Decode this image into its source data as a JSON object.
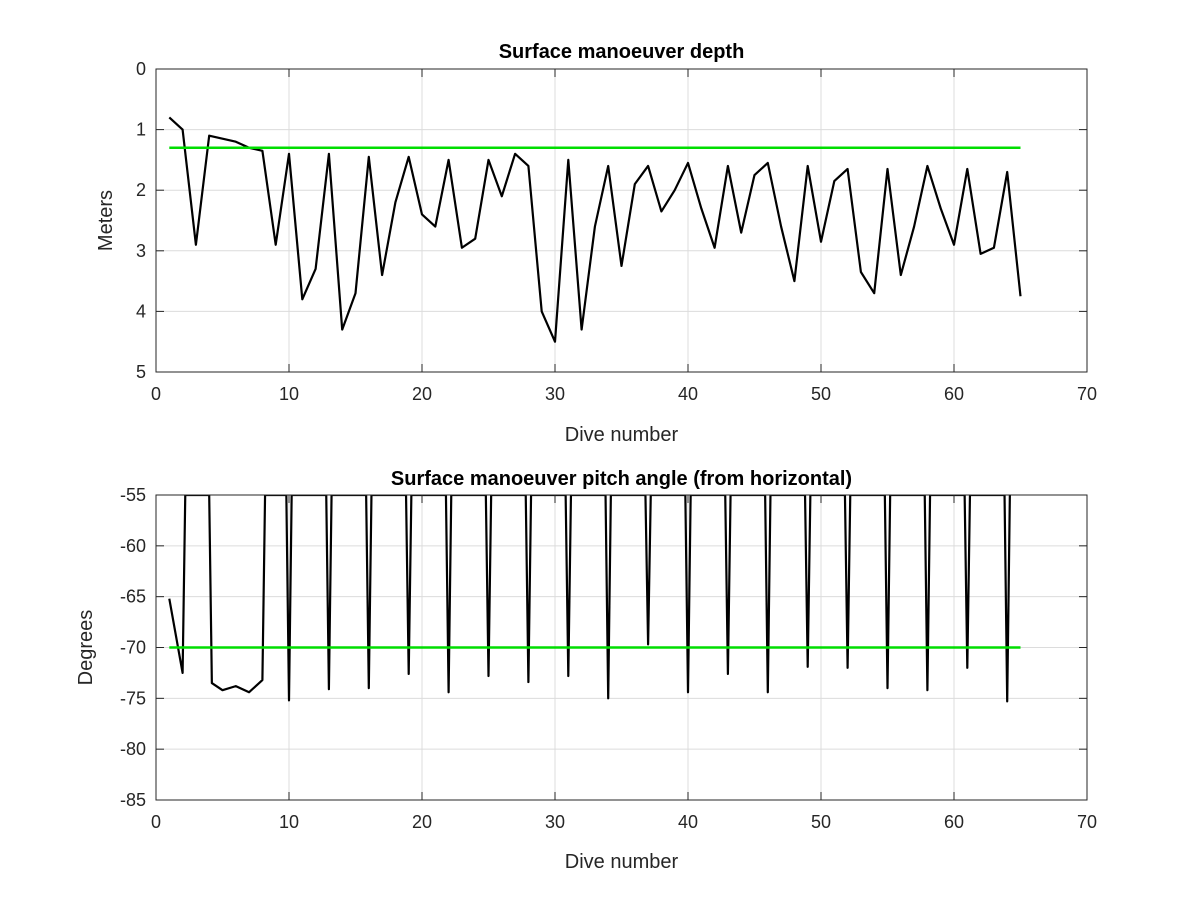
{
  "chart_data": [
    {
      "type": "line",
      "title": "Surface manoeuver depth",
      "xlabel": "Dive number",
      "ylabel": "Meters",
      "xlim": [
        0,
        70
      ],
      "ylim": [
        0,
        5
      ],
      "y_reversed": true,
      "xticks": [
        0,
        10,
        20,
        30,
        40,
        50,
        60,
        70
      ],
      "yticks": [
        0,
        1,
        2,
        3,
        4,
        5
      ],
      "grid": true,
      "series": [
        {
          "color": "#000000",
          "x": [
            1,
            2,
            3,
            4,
            5,
            6,
            7,
            8,
            9,
            10,
            11,
            12,
            13,
            14,
            15,
            16,
            17,
            18,
            19,
            20,
            21,
            22,
            23,
            24,
            25,
            26,
            27,
            28,
            29,
            30,
            31,
            32,
            33,
            34,
            35,
            36,
            37,
            38,
            39,
            40,
            41,
            42,
            43,
            44,
            45,
            46,
            47,
            48,
            49,
            50,
            51,
            52,
            53,
            54,
            55,
            56,
            57,
            58,
            59,
            60,
            61,
            62,
            63,
            64,
            65
          ],
          "y": [
            0.8,
            1.0,
            2.9,
            1.1,
            1.15,
            1.2,
            1.3,
            1.35,
            2.9,
            1.4,
            3.8,
            3.3,
            1.4,
            4.3,
            3.7,
            1.45,
            3.4,
            2.2,
            1.45,
            2.4,
            2.6,
            1.5,
            2.95,
            2.8,
            1.5,
            2.1,
            1.4,
            1.6,
            4.0,
            4.5,
            1.5,
            4.3,
            2.6,
            1.6,
            3.25,
            1.9,
            1.6,
            2.35,
            2.0,
            1.55,
            2.3,
            2.95,
            1.6,
            2.7,
            1.75,
            1.55,
            2.6,
            3.5,
            1.6,
            2.85,
            1.85,
            1.65,
            3.35,
            3.7,
            1.65,
            3.4,
            2.6,
            1.6,
            2.3,
            2.9,
            1.65,
            3.05,
            2.95,
            1.7,
            3.75
          ]
        },
        {
          "color": "#00dd00",
          "x": [
            1,
            65
          ],
          "y": [
            1.3,
            1.3
          ]
        }
      ]
    },
    {
      "type": "line",
      "title": "Surface manoeuver pitch angle (from horizontal)",
      "xlabel": "Dive number",
      "ylabel": "Degrees",
      "xlim": [
        0,
        70
      ],
      "ylim": [
        -85,
        -55
      ],
      "xticks": [
        0,
        10,
        20,
        30,
        40,
        50,
        60,
        70
      ],
      "yticks": [
        -55,
        -60,
        -65,
        -70,
        -75,
        -80,
        -85
      ],
      "grid": true,
      "series": [
        {
          "color": "#000000",
          "x": [
            1,
            2,
            2.2,
            4,
            4.2,
            5,
            6,
            7,
            8,
            8.2,
            9.8,
            10,
            10.2,
            12.8,
            13,
            13.2,
            15.8,
            16,
            16.2,
            18.8,
            19,
            19.2,
            21.8,
            22,
            22.2,
            24.8,
            25,
            25.2,
            27.8,
            28,
            28.2,
            30.8,
            31,
            31.2,
            33.8,
            34,
            34.2,
            36.8,
            37,
            37.2,
            39.8,
            40,
            40.2,
            42.8,
            43,
            43.2,
            45.8,
            46,
            46.2,
            48.8,
            49,
            49.2,
            51.8,
            52,
            52.2,
            54.8,
            55,
            55.2,
            57.8,
            58,
            58.2,
            60.8,
            61,
            61.2,
            63.8,
            64,
            64.2
          ],
          "y": [
            -65.2,
            -72.5,
            -55,
            -55,
            -73.5,
            -74.2,
            -73.8,
            -74.4,
            -73.2,
            -55,
            -55,
            -75.2,
            -55,
            -55,
            -74.1,
            -55,
            -55,
            -74.0,
            -55,
            -55,
            -72.6,
            -55,
            -55,
            -74.4,
            -55,
            -55,
            -72.8,
            -55,
            -55,
            -73.4,
            -55,
            -55,
            -72.8,
            -55,
            -55,
            -75.0,
            -55,
            -55,
            -69.7,
            -55,
            -55,
            -74.4,
            -55,
            -55,
            -72.6,
            -55,
            -55,
            -74.4,
            -55,
            -55,
            -71.9,
            -55,
            -55,
            -72.0,
            -55,
            -55,
            -74.0,
            -55,
            -55,
            -74.2,
            -55,
            -55,
            -72.0,
            -55,
            -55,
            -75.3,
            -55
          ]
        },
        {
          "color": "#00dd00",
          "x": [
            1,
            65
          ],
          "y": [
            -70,
            -70
          ]
        }
      ]
    }
  ]
}
